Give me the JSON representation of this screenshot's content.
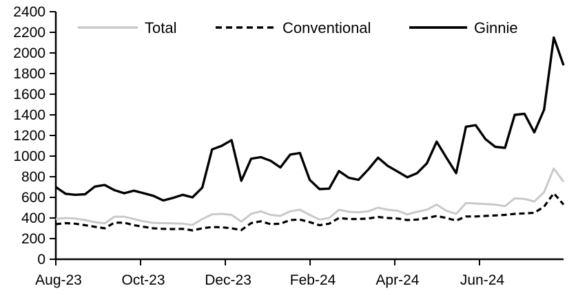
{
  "chart_data": {
    "type": "line",
    "title": "",
    "xlabel": "",
    "ylabel": "",
    "frequency": "weekly",
    "n_points": 53,
    "grid": false,
    "background_color": "#ffffff",
    "axis_color": "#000000",
    "x_axis": {
      "tick_labels": [
        "Aug-23",
        "Oct-23",
        "Dec-23",
        "Feb-24",
        "Apr-24",
        "Jun-24"
      ],
      "tick_week_positions": [
        0,
        8.68,
        17.36,
        26.04,
        34.71,
        43.39
      ]
    },
    "y_axis": {
      "min": 0,
      "max": 2400,
      "step": 200,
      "tick_labels": [
        "0",
        "200",
        "400",
        "600",
        "800",
        "1000",
        "1200",
        "1400",
        "1600",
        "1800",
        "2000",
        "2200",
        "2400"
      ]
    },
    "legend": {
      "position": "top",
      "entries": [
        "Total",
        "Conventional",
        "Ginnie"
      ]
    },
    "series": [
      {
        "name": "Total",
        "color": "#c9c9c9",
        "style": "solid",
        "values": [
          390,
          400,
          395,
          380,
          360,
          348,
          413,
          413,
          390,
          367,
          353,
          350,
          348,
          345,
          332,
          390,
          435,
          440,
          430,
          365,
          440,
          465,
          430,
          420,
          465,
          480,
          430,
          385,
          400,
          480,
          460,
          455,
          465,
          500,
          480,
          470,
          435,
          460,
          480,
          530,
          470,
          440,
          545,
          540,
          535,
          530,
          515,
          590,
          585,
          560,
          650,
          880,
          750
        ]
      },
      {
        "name": "Conventional",
        "color": "#000000",
        "style": "dashed",
        "values": [
          340,
          350,
          345,
          330,
          315,
          300,
          355,
          355,
          330,
          315,
          300,
          295,
          293,
          295,
          280,
          300,
          312,
          310,
          300,
          283,
          350,
          368,
          340,
          345,
          380,
          385,
          360,
          330,
          345,
          400,
          390,
          390,
          395,
          410,
          400,
          395,
          380,
          385,
          400,
          420,
          400,
          375,
          415,
          415,
          420,
          425,
          430,
          440,
          445,
          450,
          510,
          640,
          530
        ]
      },
      {
        "name": "Ginnie",
        "color": "#000000",
        "style": "solid",
        "values": [
          700,
          635,
          625,
          630,
          705,
          720,
          670,
          640,
          665,
          640,
          615,
          570,
          595,
          625,
          600,
          695,
          1065,
          1100,
          1155,
          760,
          975,
          990,
          955,
          890,
          1015,
          1030,
          770,
          680,
          685,
          855,
          790,
          770,
          870,
          985,
          905,
          850,
          795,
          835,
          930,
          1140,
          985,
          835,
          1285,
          1300,
          1165,
          1090,
          1080,
          1400,
          1410,
          1230,
          1450,
          2150,
          1880
        ]
      }
    ]
  }
}
